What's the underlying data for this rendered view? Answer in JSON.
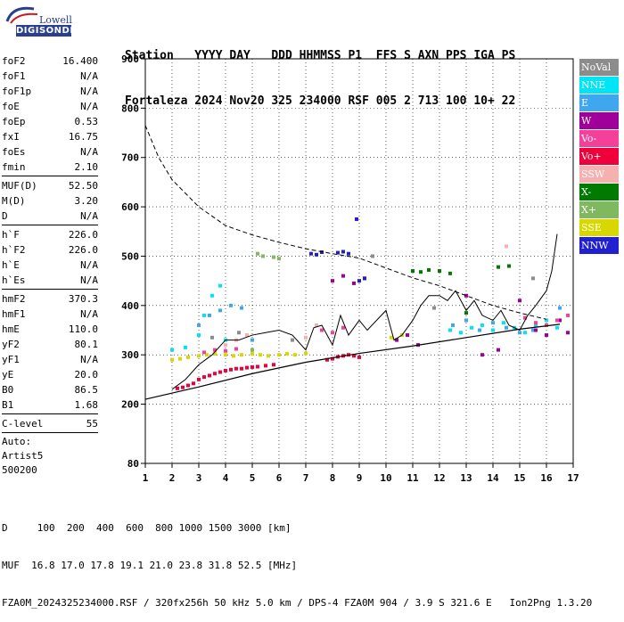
{
  "logo": {
    "top": "Lowell",
    "brand": "DIGISONDE"
  },
  "header": {
    "line1": "Station   YYYY DAY   DDD HHMMSS P1  FFS S AXN PPS IGA PS",
    "line2": "Fortaleza 2024 Nov20 325 234000 RSF 005 2 713 100 10+ 22"
  },
  "params": {
    "group1": [
      {
        "k": "foF2",
        "v": "16.400"
      },
      {
        "k": "foF1",
        "v": "N/A"
      },
      {
        "k": "foF1p",
        "v": "N/A"
      },
      {
        "k": "foE",
        "v": "N/A"
      },
      {
        "k": "foEp",
        "v": "0.53"
      },
      {
        "k": "fxI",
        "v": "16.75"
      },
      {
        "k": "foEs",
        "v": "N/A"
      },
      {
        "k": "fmin",
        "v": "2.10"
      }
    ],
    "group2": [
      {
        "k": "MUF(D)",
        "v": "52.50"
      },
      {
        "k": "M(D)",
        "v": "3.20"
      },
      {
        "k": "D",
        "v": "N/A"
      }
    ],
    "group3": [
      {
        "k": "h`F",
        "v": "226.0"
      },
      {
        "k": "h`F2",
        "v": "226.0"
      },
      {
        "k": "h`E",
        "v": "N/A"
      },
      {
        "k": "h`Es",
        "v": "N/A"
      }
    ],
    "group4": [
      {
        "k": "hmF2",
        "v": "370.3"
      },
      {
        "k": "hmF1",
        "v": "N/A"
      },
      {
        "k": "hmE",
        "v": "110.0"
      },
      {
        "k": "yF2",
        "v": "80.1"
      },
      {
        "k": "yF1",
        "v": "N/A"
      },
      {
        "k": "yE",
        "v": "20.0"
      },
      {
        "k": "B0",
        "v": "86.5"
      },
      {
        "k": "B1",
        "v": "1.68"
      }
    ],
    "group5": [
      {
        "k": "C-level",
        "v": "55"
      }
    ],
    "auto": [
      "Auto:",
      "Artist5",
      "500200"
    ]
  },
  "legend": [
    {
      "label": "NoVal",
      "color": "#8c8c8c"
    },
    {
      "label": "NNE",
      "color": "#00e5f5"
    },
    {
      "label": "E",
      "color": "#3fa6f0"
    },
    {
      "label": "W",
      "color": "#a0009a"
    },
    {
      "label": "Vo-",
      "color": "#f5409a"
    },
    {
      "label": "Vo+",
      "color": "#f0003a"
    },
    {
      "label": "SSW",
      "color": "#f5b0b0"
    },
    {
      "label": "X-",
      "color": "#007a00"
    },
    {
      "label": "X+",
      "color": "#80b860"
    },
    {
      "label": "SSE",
      "color": "#d8d800"
    },
    {
      "label": "NNW",
      "color": "#2020d0"
    }
  ],
  "chart_data": {
    "type": "scatter",
    "x_ticks": [
      1,
      2,
      3,
      4,
      5,
      6,
      7,
      8,
      9,
      10,
      11,
      12,
      13,
      14,
      15,
      16,
      17
    ],
    "y_ticks": [
      80,
      200,
      300,
      400,
      500,
      600,
      700,
      800,
      900
    ],
    "xlim": [
      1,
      17
    ],
    "ylim": [
      80,
      900
    ],
    "grid": true,
    "dashed_curve": {
      "x": [
        1,
        1.5,
        2,
        3,
        4,
        5,
        6,
        7,
        8,
        9,
        10,
        11,
        12,
        13,
        14,
        15,
        16
      ],
      "y": [
        765,
        700,
        655,
        600,
        562,
        543,
        528,
        515,
        505,
        496,
        476,
        456,
        440,
        420,
        400,
        385,
        372
      ]
    },
    "lower_line": {
      "x": [
        1,
        3,
        5,
        7,
        9,
        11,
        13,
        15,
        16.5
      ],
      "y": [
        210,
        235,
        262,
        285,
        303,
        318,
        335,
        352,
        362
      ]
    },
    "trace": {
      "x": [
        2,
        2.5,
        3,
        3.5,
        4,
        4.5,
        5,
        5.5,
        6,
        6.5,
        7,
        7.3,
        7.6,
        8,
        8.3,
        8.6,
        9,
        9.3,
        10,
        10.3,
        10.6,
        11,
        11.3,
        11.6,
        12,
        12.3,
        12.6,
        13,
        13.3,
        13.6,
        14,
        14.3,
        14.6,
        15,
        15.3,
        15.6,
        16,
        16.2,
        16.4
      ],
      "y": [
        230,
        250,
        280,
        300,
        330,
        330,
        340,
        345,
        350,
        340,
        310,
        355,
        360,
        320,
        380,
        340,
        370,
        350,
        390,
        330,
        340,
        370,
        400,
        420,
        420,
        410,
        430,
        390,
        410,
        380,
        370,
        390,
        360,
        350,
        380,
        400,
        430,
        470,
        545
      ]
    },
    "series": [
      {
        "name": "Vo+",
        "color": "#f0003a",
        "x": [
          2.2,
          2.4,
          2.6,
          2.8,
          3,
          3.2,
          3.4,
          3.6,
          3.8,
          4,
          4.2,
          4.4,
          4.6,
          4.8,
          5,
          5.2,
          5.5,
          5.8,
          7.8,
          8,
          8.2,
          8.4,
          8.6,
          8.8,
          9
        ],
        "y": [
          232,
          234,
          238,
          242,
          250,
          255,
          258,
          262,
          265,
          268,
          270,
          272,
          272,
          274,
          275,
          276,
          278,
          280,
          290,
          292,
          296,
          298,
          300,
          298,
          295
        ]
      },
      {
        "name": "SSE",
        "color": "#d8d800",
        "x": [
          2,
          2.3,
          2.6,
          3,
          3.3,
          3.6,
          4,
          4.3,
          4.6,
          5,
          5.3,
          5.6,
          6,
          6.3,
          6.6,
          7,
          10.2,
          10.4,
          10.6
        ],
        "y": [
          290,
          292,
          295,
          298,
          300,
          302,
          300,
          298,
          300,
          302,
          300,
          298,
          300,
          302,
          300,
          303,
          335,
          330,
          340
        ]
      },
      {
        "name": "NNE",
        "color": "#00e5f5",
        "x": [
          2,
          2.5,
          3,
          3.2,
          3.5,
          3.8,
          4,
          12.4,
          12.8,
          13.2,
          13.6,
          14,
          14.4,
          14.8,
          15.2,
          15.6,
          16,
          16.4
        ],
        "y": [
          310,
          315,
          340,
          380,
          420,
          440,
          330,
          350,
          345,
          355,
          360,
          350,
          365,
          355,
          345,
          360,
          370,
          355
        ]
      },
      {
        "name": "E",
        "color": "#3fa6f0",
        "x": [
          3,
          3.4,
          3.8,
          4.2,
          4.6,
          5,
          12.5,
          13,
          13.5,
          14,
          14.5,
          15,
          15.5,
          16,
          16.5
        ],
        "y": [
          360,
          380,
          390,
          400,
          395,
          330,
          360,
          370,
          350,
          365,
          355,
          345,
          350,
          360,
          395
        ]
      },
      {
        "name": "W",
        "color": "#a0009a",
        "x": [
          8,
          8.4,
          8.8,
          9.2,
          10.4,
          10.8,
          11.2,
          13,
          13.6,
          14.2,
          15,
          15.6,
          16,
          16.5,
          16.8
        ],
        "y": [
          450,
          460,
          445,
          455,
          330,
          340,
          320,
          420,
          300,
          310,
          410,
          350,
          340,
          370,
          345
        ]
      },
      {
        "name": "Vo-",
        "color": "#f5409a",
        "x": [
          3.2,
          3.6,
          4,
          4.4,
          7.6,
          8,
          8.4,
          15.2,
          15.6,
          16,
          16.4,
          16.8
        ],
        "y": [
          305,
          310,
          308,
          312,
          350,
          345,
          355,
          375,
          365,
          360,
          370,
          380
        ]
      },
      {
        "name": "SSW",
        "color": "#f5b0b0",
        "x": [
          4,
          4.4,
          4.8,
          7,
          7.4,
          14.5
        ],
        "y": [
          320,
          330,
          340,
          335,
          360,
          520
        ]
      },
      {
        "name": "X-",
        "color": "#007a00",
        "x": [
          11,
          11.3,
          11.6,
          12,
          12.4,
          13,
          14.2,
          14.6
        ],
        "y": [
          470,
          468,
          472,
          470,
          465,
          385,
          478,
          480
        ]
      },
      {
        "name": "X+",
        "color": "#80b860",
        "x": [
          5,
          5.2,
          5.4,
          5.8,
          6
        ],
        "y": [
          310,
          505,
          500,
          498,
          495
        ]
      },
      {
        "name": "NNW",
        "color": "#2020d0",
        "x": [
          7.2,
          7.4,
          7.6,
          8.2,
          8.4,
          8.6,
          8.9,
          9,
          9.2
        ],
        "y": [
          505,
          503,
          508,
          507,
          509,
          505,
          575,
          450,
          455
        ]
      },
      {
        "name": "NoVal",
        "color": "#8c8c8c",
        "x": [
          3.5,
          4.5,
          6.5,
          9.5,
          11.8,
          15.5
        ],
        "y": [
          335,
          345,
          330,
          500,
          395,
          455
        ]
      }
    ]
  },
  "footer": {
    "line1": "D     100  200  400  600  800 1000 1500 3000 [km]",
    "line2": "MUF  16.8 17.0 17.8 19.1 21.0 23.8 31.8 52.5 [MHz]",
    "line3": "FZA0M_2024325234000.RSF / 320fx256h 50 kHz 5.0 km / DPS-4 FZA0M 904 / 3.9 S 321.6 E   Ion2Png 1.3.20"
  }
}
